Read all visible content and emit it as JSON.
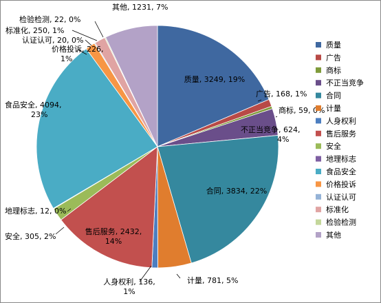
{
  "chart_data": {
    "type": "pie",
    "title": "",
    "legend_position": "right",
    "slices": [
      {
        "name": "质量",
        "value": 3249,
        "pct": "19%",
        "color": "#3F68A0",
        "label_lines": [
          "质量, 3249, 19%"
        ]
      },
      {
        "name": "广告",
        "value": 168,
        "pct": "1%",
        "color": "#B84A46",
        "label_lines": [
          "广告, 168, 1%"
        ]
      },
      {
        "name": "商标",
        "value": 59,
        "pct": "0%",
        "color": "#7F9B3A",
        "label_lines": [
          "商标, 59, 0%"
        ]
      },
      {
        "name": "不正当竞争",
        "value": 624,
        "pct": "4%",
        "color": "#6A4E8A",
        "label_lines": [
          "不正当竞争, 624,",
          "4%"
        ]
      },
      {
        "name": "合同",
        "value": 3834,
        "pct": "22%",
        "color": "#35889E",
        "label_lines": [
          "合同, 3834, 22%"
        ]
      },
      {
        "name": "计量",
        "value": 781,
        "pct": "5%",
        "color": "#E07D2E",
        "label_lines": [
          "计量, 781, 5%"
        ]
      },
      {
        "name": "人身权利",
        "value": 136,
        "pct": "1%",
        "color": "#4C7EC0",
        "label_lines": [
          "人身权利, 136,",
          "1%"
        ]
      },
      {
        "name": "售后服务",
        "value": 2432,
        "pct": "14%",
        "color": "#C2504E",
        "label_lines": [
          "售后服务, 2432,",
          "14%"
        ]
      },
      {
        "name": "安全",
        "value": 305,
        "pct": "2%",
        "color": "#9BBB59",
        "label_lines": [
          "安全, 305, 2%"
        ]
      },
      {
        "name": "地理标志",
        "value": 12,
        "pct": "0%",
        "color": "#7E5FA2",
        "label_lines": [
          "地理标志, 12, 0%"
        ]
      },
      {
        "name": "食品安全",
        "value": 4094,
        "pct": "23%",
        "color": "#4AACC5",
        "label_lines": [
          "食品安全, 4094,",
          "23%"
        ]
      },
      {
        "name": "价格投诉",
        "value": 226,
        "pct": "1%",
        "color": "#F79645",
        "label_lines": [
          "价格投诉, 226,",
          "1%"
        ]
      },
      {
        "name": "认证认可",
        "value": 20,
        "pct": "0%",
        "color": "#95B3D7",
        "label_lines": [
          "认证认可, 20, 0%"
        ]
      },
      {
        "name": "标准化",
        "value": 250,
        "pct": "1%",
        "color": "#E0A4A3",
        "label_lines": [
          "标准化, 250, 1%"
        ]
      },
      {
        "name": "检验检测",
        "value": 22,
        "pct": "0%",
        "color": "#C4D79B",
        "label_lines": [
          "检验检测, 22, 0%"
        ]
      },
      {
        "name": "其他",
        "value": 1231,
        "pct": "7%",
        "color": "#B3A2C7",
        "label_lines": [
          "其他, 1231, 7%"
        ]
      }
    ]
  }
}
